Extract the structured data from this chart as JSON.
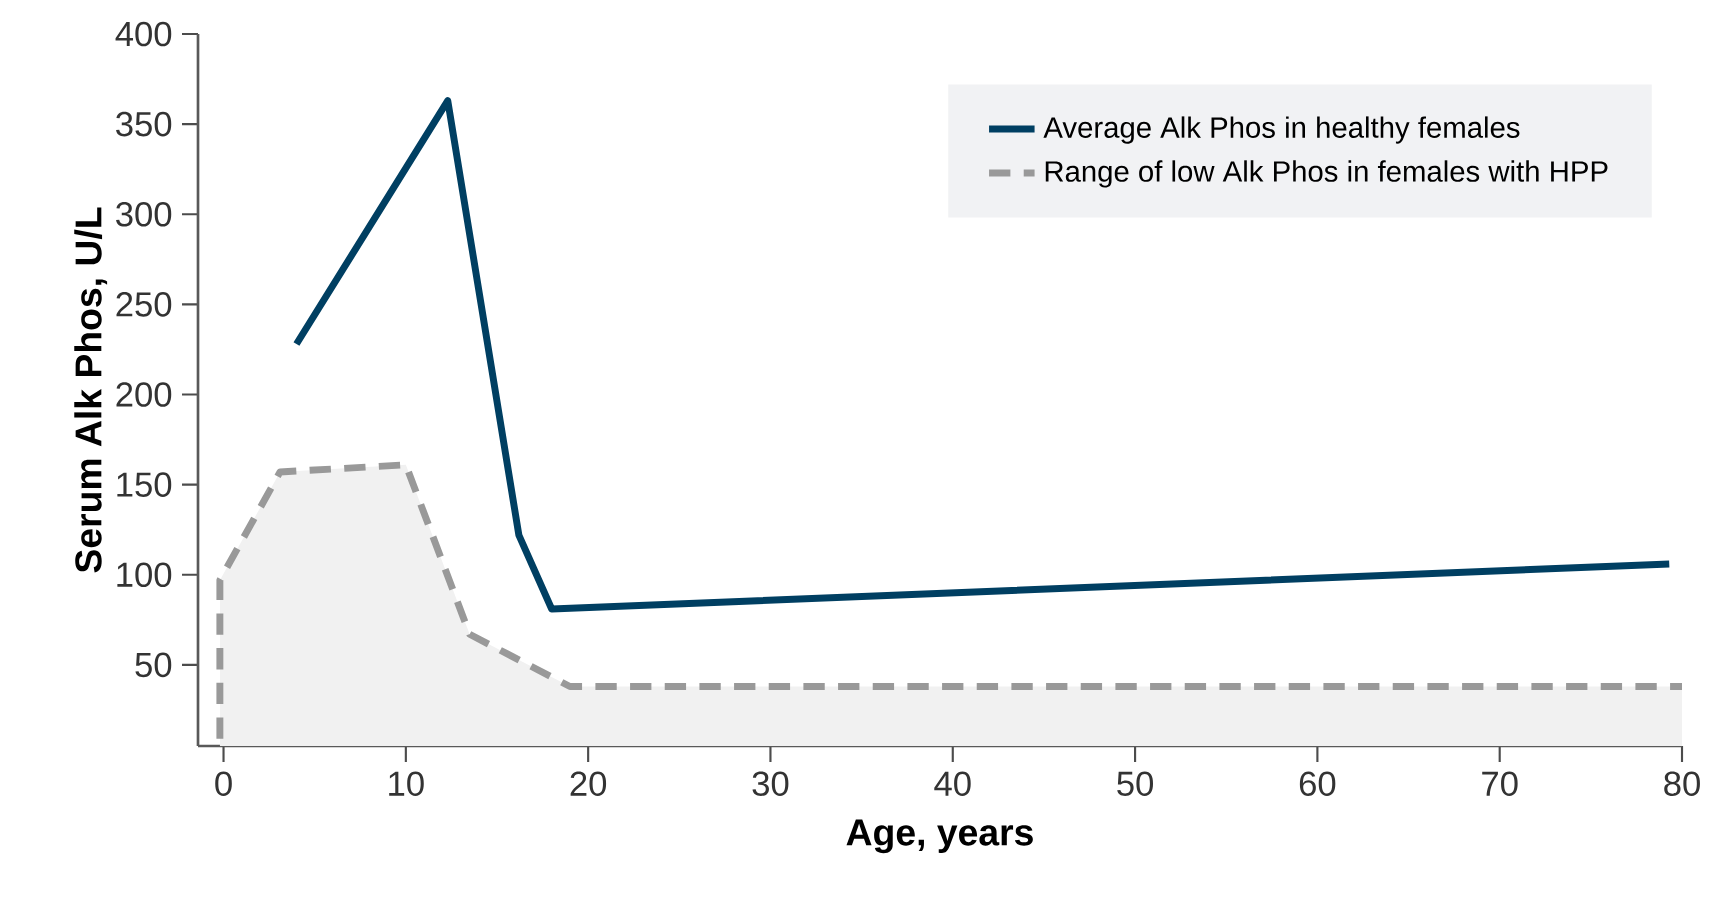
{
  "chart_data": {
    "type": "line",
    "xlabel": "Age, years",
    "ylabel": "Serum Alk Phos, U/L",
    "xlim": [
      -1.4,
      80
    ],
    "xticks": [
      0,
      10,
      20,
      30,
      40,
      50,
      60,
      70,
      80
    ],
    "ylim": [
      5,
      400
    ],
    "yticks": [
      50,
      100,
      150,
      200,
      250,
      300,
      350,
      400
    ],
    "legend": "top right",
    "grid": false,
    "series": [
      {
        "name": "Average Alk Phos in healthy females",
        "color": "#003f62",
        "line_style": "solid",
        "x": [
          4,
          12.3,
          16.2,
          18,
          79.3
        ],
        "values": [
          228,
          363,
          122,
          81,
          106
        ]
      },
      {
        "name": "Range of low Alk Phos in females with HPP",
        "type": "area",
        "color": "#999999",
        "line_style": "dashed",
        "x": [
          -0.2,
          -0.2,
          3.1,
          10,
          13.5,
          19,
          80
        ],
        "values": [
          9,
          97,
          157,
          161,
          67,
          38,
          38
        ]
      }
    ]
  }
}
